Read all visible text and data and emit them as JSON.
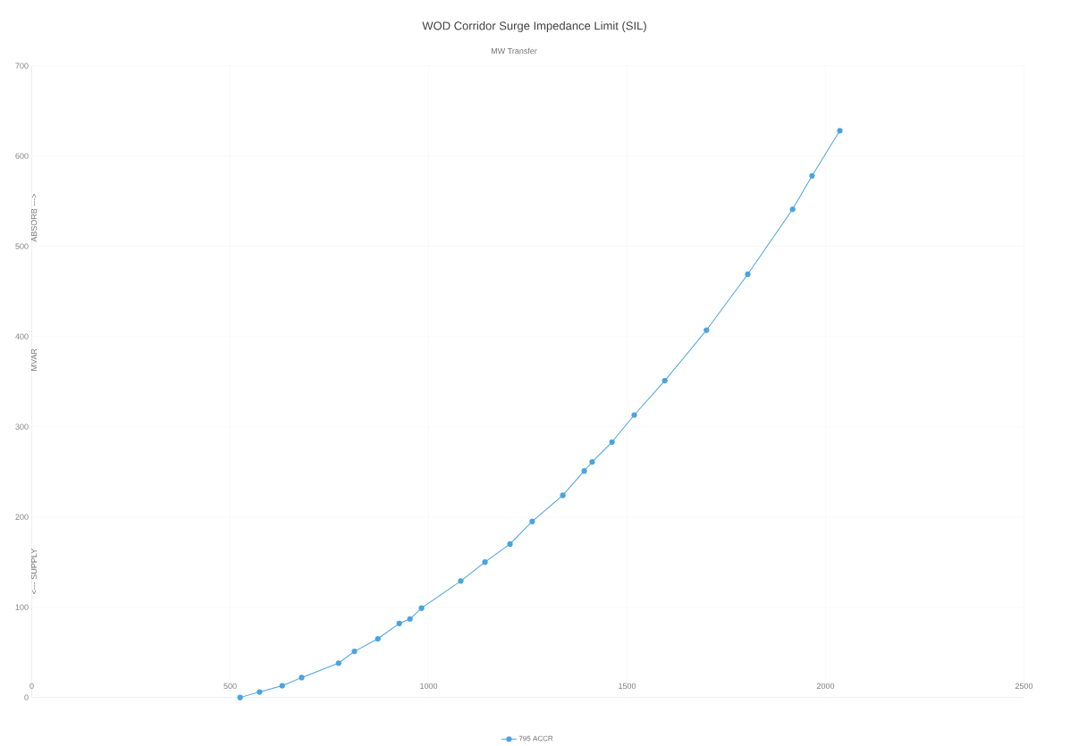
{
  "chart_data": {
    "type": "line",
    "title": "WOD Corridor Surge Impedance Limit (SIL)",
    "xlabel": "MW Transfer",
    "ylabel": "MVAR",
    "annotations": [
      "<--- SUPPLY",
      "ABSORB --->"
    ],
    "xlim": [
      0,
      2500
    ],
    "xticks": [
      0,
      500,
      1000,
      1500,
      2000,
      2500
    ],
    "ylim": [
      0,
      700
    ],
    "yticks": [
      0,
      100,
      200,
      300,
      400,
      500,
      600,
      700
    ],
    "grid": true,
    "legend": "bottom",
    "marker": "circle",
    "line_style": "solid",
    "series": [
      {
        "name": "795 ACCR",
        "color": "#4aa3df",
        "x": [
          525,
          574,
          631,
          680,
          773,
          813,
          872,
          926,
          953,
          982,
          1081,
          1142,
          1205,
          1261,
          1338,
          1392,
          1412,
          1462,
          1518,
          1595,
          1700,
          1804,
          1917,
          1966,
          2036
        ],
        "values": [
          0,
          6,
          13,
          22,
          38,
          51,
          65,
          82,
          87,
          99,
          129,
          150,
          170,
          195,
          224,
          251,
          261,
          283,
          313,
          351,
          407,
          469,
          541,
          578,
          628
        ]
      }
    ]
  }
}
